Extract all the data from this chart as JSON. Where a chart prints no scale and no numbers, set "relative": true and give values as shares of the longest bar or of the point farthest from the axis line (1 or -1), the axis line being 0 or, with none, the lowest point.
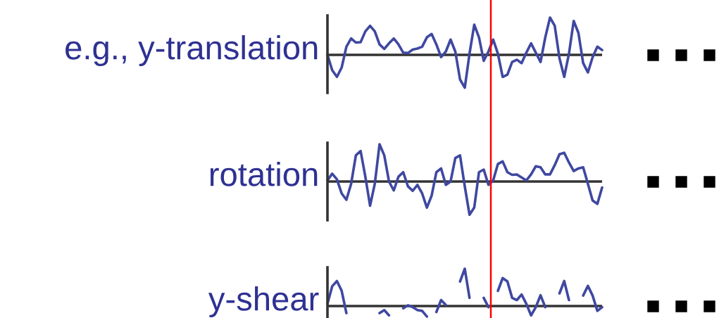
{
  "chart_data": [
    {
      "type": "line",
      "relative": true,
      "ylabel": "e.g., y-translation",
      "categories": [
        null,
        null,
        null,
        null,
        null,
        null,
        null,
        null,
        null,
        null,
        null,
        null,
        null,
        null,
        null,
        null,
        null,
        null,
        null,
        null,
        null,
        null,
        null,
        null,
        null,
        null,
        null,
        null,
        null,
        null,
        null,
        null,
        null,
        null,
        null,
        null,
        null,
        null,
        null,
        null,
        null,
        null,
        null,
        null,
        null,
        null,
        null,
        null,
        null,
        null,
        null,
        null,
        null,
        null,
        null,
        null,
        null,
        null,
        null
      ],
      "series": [
        {
          "color": "#3f48a0",
          "values": [
            0,
            -0.41,
            -0.59,
            -0.34,
            0.22,
            0.44,
            0.33,
            0.34,
            0.63,
            0.78,
            0.63,
            0.28,
            0.16,
            0.31,
            0.44,
            0.28,
            0.06,
            0.05,
            0.14,
            0.17,
            0.22,
            0.47,
            0.56,
            0.28,
            -0.06,
            0.09,
            0.41,
            0.09,
            -0.66,
            -0.88,
            0.03,
            0.81,
            0.47,
            -0.16,
            0.09,
            0.41,
            0.03,
            -0.59,
            -0.53,
            -0.19,
            -0.13,
            -0.22,
            0.06,
            0.31,
            0.06,
            -0.19,
            0.47,
            1,
            0.78,
            -0.09,
            -0.59,
            0.03,
            0.91,
            0.59,
            -0.22,
            -0.47,
            -0.06,
            0.22,
            0.13
          ]
        }
      ],
      "marker": "none",
      "line_style": "solid",
      "grid": false
    },
    {
      "type": "line",
      "relative": true,
      "ylabel": "rotation",
      "categories": [
        null,
        null,
        null,
        null,
        null,
        null,
        null,
        null,
        null,
        null,
        null,
        null,
        null,
        null,
        null,
        null,
        null,
        null,
        null,
        null,
        null,
        null,
        null,
        null,
        null,
        null,
        null,
        null,
        null,
        null,
        null,
        null,
        null,
        null,
        null,
        null,
        null,
        null,
        null,
        null,
        null,
        null,
        null,
        null,
        null,
        null,
        null,
        null,
        null,
        null,
        null,
        null,
        null,
        null,
        null,
        null,
        null,
        null,
        null
      ],
      "series": [
        {
          "color": "#3f48a0",
          "values": [
            0.03,
            0.21,
            0.06,
            -0.32,
            -0.49,
            -0.06,
            0.7,
            0.82,
            0.13,
            -0.65,
            -0.06,
            1,
            0.7,
            0,
            -0.24,
            0.13,
            0.25,
            -0.13,
            -0.25,
            -0.09,
            -0.32,
            -0.7,
            -0.38,
            0.25,
            0.35,
            -0.09,
            0,
            0.63,
            0.7,
            -0.13,
            -0.89,
            -0.7,
            0.25,
            0.32,
            -0.09,
            0.03,
            0.47,
            0.54,
            0.25,
            0.18,
            0.19,
            0.11,
            0.03,
            0.19,
            0.41,
            0.38,
            0.19,
            0.19,
            0.44,
            0.73,
            0.77,
            0.51,
            0.28,
            0.35,
            0.38,
            -0.06,
            -0.51,
            -0.6,
            -0.16
          ]
        }
      ],
      "marker": "none",
      "line_style": "solid",
      "grid": false
    },
    {
      "type": "line",
      "relative": true,
      "ylabel": "y-shear",
      "categories": [
        null,
        null,
        null,
        null,
        null,
        null,
        null,
        null,
        null,
        null,
        null,
        null,
        null,
        null,
        null,
        null,
        null,
        null,
        null,
        null,
        null,
        null,
        null,
        null,
        null,
        null,
        null,
        null,
        null,
        null,
        null,
        null,
        null,
        null,
        null,
        null,
        null,
        null,
        null,
        null,
        null,
        null,
        null,
        null,
        null,
        null,
        null,
        null,
        null,
        null,
        null,
        null,
        null,
        null,
        null,
        null,
        null,
        null,
        null
      ],
      "series": [
        {
          "color": "#3f48a0",
          "values": [
            0.06,
            0.53,
            0.67,
            0.41,
            -0.19,
            null,
            null,
            null,
            null,
            null,
            null,
            -0.19,
            -0.11,
            -0.25,
            null,
            null,
            -0.06,
            0.02,
            -0.03,
            -0.11,
            -0.13,
            -0.28,
            null,
            -0.16,
            0.16,
            0.03,
            null,
            null,
            0.66,
            1,
            0.22,
            null,
            null,
            0.22,
            -0.03,
            null,
            0.41,
            0.75,
            0.66,
            0.22,
            0.16,
            0.31,
            0.06,
            -0.25,
            -0.03,
            0.29,
            -0.03,
            null,
            null,
            0.34,
            0.67,
            0.16,
            null,
            null,
            0.28,
            0.54,
            0.28,
            -0.13,
            -0.03
          ]
        }
      ],
      "marker": "none",
      "line_style": "solid",
      "grid": false
    }
  ]
}
